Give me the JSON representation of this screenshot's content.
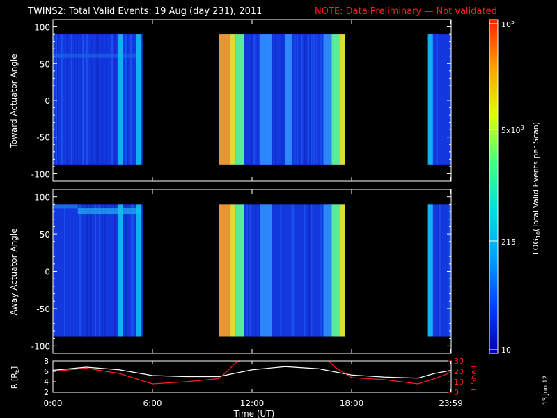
{
  "title": {
    "main": "TWINS2: Total Valid Events: 19 Aug (day 231), 2011",
    "note": "NOTE: Data Preliminary — Not validated",
    "main_color": "#ffffff",
    "note_color": "#ff2020"
  },
  "footer_date": "13 Jun 12",
  "chart_data": [
    {
      "type": "heatmap",
      "ylabel": "Toward Actuator Angle",
      "ylim": [
        -110,
        110
      ],
      "yticks": [
        "100",
        "50",
        "0",
        "-50",
        "-100"
      ],
      "ytick_values": [
        100,
        50,
        0,
        -50,
        -100
      ],
      "x_range_hours": [
        0,
        24
      ],
      "data_angle_range": [
        -88,
        90
      ],
      "data_segments_hours": [
        [
          0.0,
          5.4
        ],
        [
          10.0,
          17.6
        ],
        [
          22.6,
          24.0
        ]
      ],
      "bright_bands_hours": [
        {
          "t0": 3.9,
          "t1": 4.2,
          "level": "cyan"
        },
        {
          "t0": 5.0,
          "t1": 5.3,
          "level": "cyan"
        },
        {
          "t0": 10.0,
          "t1": 10.7,
          "level": "orange"
        },
        {
          "t0": 10.7,
          "t1": 11.0,
          "level": "yellow"
        },
        {
          "t0": 11.0,
          "t1": 11.5,
          "level": "green"
        },
        {
          "t0": 12.5,
          "t1": 13.2,
          "level": "lightblue"
        },
        {
          "t0": 14.0,
          "t1": 14.4,
          "level": "lightblue"
        },
        {
          "t0": 16.3,
          "t1": 16.8,
          "level": "lightblue"
        },
        {
          "t0": 16.8,
          "t1": 17.3,
          "level": "green"
        },
        {
          "t0": 17.3,
          "t1": 17.6,
          "level": "yellow"
        },
        {
          "t0": 22.6,
          "t1": 22.9,
          "level": "cyan"
        }
      ]
    },
    {
      "type": "heatmap",
      "ylabel": "Away Actuator Angle",
      "ylim": [
        -110,
        110
      ],
      "yticks": [
        "100",
        "50",
        "0",
        "-50",
        "-100"
      ],
      "ytick_values": [
        100,
        50,
        0,
        -50,
        -100
      ],
      "x_range_hours": [
        0,
        24
      ],
      "data_angle_range": [
        -88,
        90
      ],
      "data_segments_hours": [
        [
          0.0,
          5.4
        ],
        [
          10.0,
          17.6
        ],
        [
          22.6,
          24.0
        ]
      ],
      "bright_bands_hours": [
        {
          "t0": 3.9,
          "t1": 4.2,
          "level": "cyan"
        },
        {
          "t0": 5.0,
          "t1": 5.3,
          "level": "cyan"
        },
        {
          "t0": 10.0,
          "t1": 10.7,
          "level": "orange"
        },
        {
          "t0": 10.7,
          "t1": 11.0,
          "level": "yellow"
        },
        {
          "t0": 11.0,
          "t1": 11.5,
          "level": "green"
        },
        {
          "t0": 12.5,
          "t1": 13.2,
          "level": "lightblue"
        },
        {
          "t0": 16.3,
          "t1": 16.8,
          "level": "lightblue"
        },
        {
          "t0": 16.8,
          "t1": 17.3,
          "level": "green"
        },
        {
          "t0": 17.3,
          "t1": 17.6,
          "level": "yellow"
        },
        {
          "t0": 22.6,
          "t1": 22.9,
          "level": "cyan"
        }
      ]
    },
    {
      "type": "line",
      "xlabel": "Time (UT)",
      "xticks": [
        "0:00",
        "6:00",
        "12:00",
        "18:00",
        "23:59"
      ],
      "xtick_hours": [
        0,
        6,
        12,
        18,
        23.98
      ],
      "xlim": [
        0,
        24
      ],
      "ylabel_left": "R [R",
      "ylabel_left_sub": "E",
      "ylabel_left_end": "]",
      "ylim_left": [
        2,
        8
      ],
      "yticks_left": [
        "8",
        "6",
        "4",
        "2"
      ],
      "ytick_left_values": [
        8,
        6,
        4,
        2
      ],
      "ylabel_right": "L Shell",
      "ylim_right": [
        0,
        30
      ],
      "yticks_right": [
        "30",
        "20",
        "10",
        "0"
      ],
      "ytick_right_values": [
        30,
        20,
        10,
        0
      ],
      "series": [
        {
          "color": "#ffffff",
          "axis": "left",
          "x": [
            0,
            2,
            4,
            6,
            8,
            10,
            12,
            14,
            16,
            18,
            20,
            22,
            23,
            24
          ],
          "y": [
            6.2,
            6.8,
            6.3,
            5.2,
            5.0,
            5.0,
            6.3,
            6.9,
            6.5,
            5.3,
            4.9,
            4.7,
            5.6,
            6.2
          ]
        },
        {
          "color": "#ff2020",
          "axis": "right",
          "x": [
            0,
            2,
            4,
            6,
            8,
            10,
            10.5,
            11,
            11.3
          ],
          "y": [
            20,
            23,
            18,
            8,
            10,
            13,
            20,
            28,
            30
          ]
        },
        {
          "color": "#ff2020",
          "axis": "right",
          "x": [
            16.6,
            17,
            18,
            20,
            22,
            23,
            24
          ],
          "y": [
            30,
            24,
            14,
            12,
            8,
            13,
            19
          ]
        }
      ]
    }
  ],
  "colorbar": {
    "label": "LOG",
    "label_sub": "10",
    "label_end": "(Total Valid Events per Scan)",
    "tick_labels": {
      "top_base": "10",
      "top_exp": "5",
      "mid_pre": "5x10",
      "mid_exp": "3",
      "low": "215",
      "bottom": "10"
    },
    "colors": [
      "#0000b0",
      "#0040ff",
      "#00a0ff",
      "#00e0e0",
      "#40ff80",
      "#e0ff00",
      "#ffa000",
      "#ff2000"
    ]
  }
}
